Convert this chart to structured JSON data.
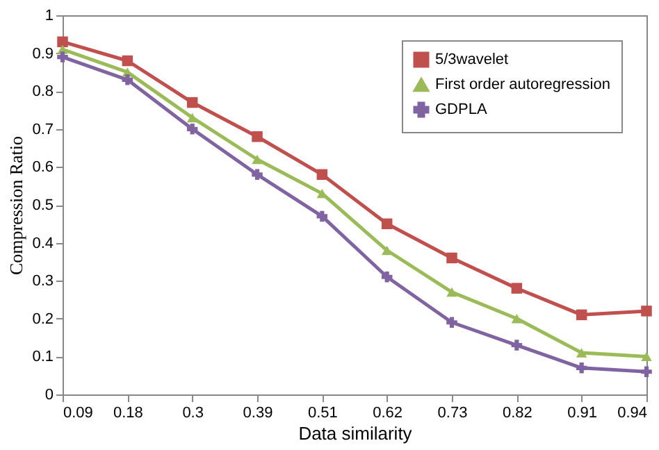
{
  "chart_data": {
    "type": "line",
    "xlabel": "Data similarity",
    "ylabel": "Compression Ratio",
    "categories": [
      "0.09",
      "0.18",
      "0.3",
      "0.39",
      "0.51",
      "0.62",
      "0.73",
      "0.82",
      "0.91",
      "0.94"
    ],
    "series": [
      {
        "name": "5/3wavelet",
        "color": "#c0504d",
        "marker": "square",
        "values": [
          0.93,
          0.88,
          0.77,
          0.68,
          0.58,
          0.45,
          0.36,
          0.28,
          0.21,
          0.22
        ]
      },
      {
        "name": "First order autoregression",
        "color": "#9bbb59",
        "marker": "triangle",
        "values": [
          0.91,
          0.85,
          0.73,
          0.62,
          0.53,
          0.38,
          0.27,
          0.2,
          0.11,
          0.1
        ]
      },
      {
        "name": "GDPLA",
        "color": "#8064a2",
        "marker": "cross",
        "values": [
          0.89,
          0.83,
          0.7,
          0.58,
          0.47,
          0.31,
          0.19,
          0.13,
          0.07,
          0.06
        ]
      }
    ],
    "ylim": [
      0,
      1
    ],
    "yticks": [
      0,
      0.1,
      0.2,
      0.3,
      0.4,
      0.5,
      0.6,
      0.7,
      0.8,
      0.9,
      1
    ],
    "grid": false,
    "legend": "top right",
    "line_style": "solid"
  }
}
